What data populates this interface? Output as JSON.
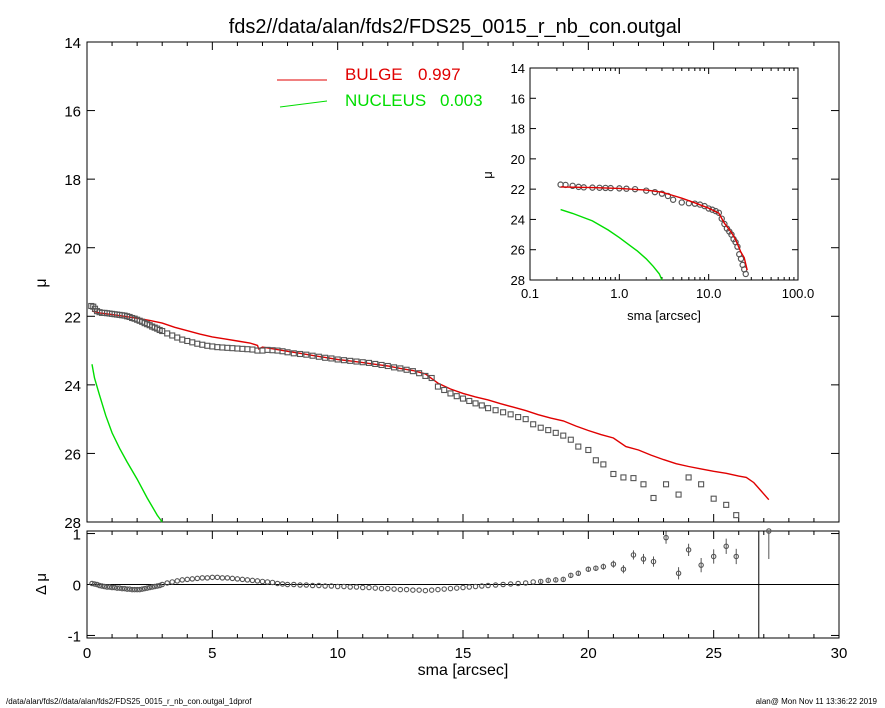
{
  "title": "fds2//data/alan/fds2/FDS25_0015_r_nb_con.outgal",
  "footer_left": "/data/alan/fds2//data/alan/fds2/FDS25_0015_r_nb_con.outgal_1dprof",
  "footer_right": "alan@  Mon Nov 11 13:36:22 2019",
  "colors": {
    "bulge": "#e00000",
    "nucleus": "#00dd00",
    "data": "#555555",
    "axes": "#000000"
  },
  "chart_data": [
    {
      "id": "main_profile",
      "type": "scatter",
      "ylabel": "μ",
      "xlim": [
        0,
        30
      ],
      "ylim": [
        28,
        14
      ],
      "y_inverted": true,
      "yticks": [
        "14",
        "16",
        "18",
        "20",
        "22",
        "24",
        "26",
        "28"
      ],
      "legend": [
        {
          "name": "BULGE",
          "value": "0.997",
          "color": "#e00000"
        },
        {
          "name": "NUCLEUS",
          "value": "0.003",
          "color": "#00dd00"
        }
      ],
      "legend_position": "top-center",
      "series": [
        {
          "name": "data",
          "marker": "square",
          "x": [
            0.17,
            0.25,
            0.32,
            0.4,
            0.5,
            0.6,
            0.7,
            0.8,
            0.9,
            1.0,
            1.1,
            1.2,
            1.3,
            1.4,
            1.5,
            1.6,
            1.7,
            1.8,
            1.9,
            2.0,
            2.1,
            2.2,
            2.3,
            2.4,
            2.5,
            2.6,
            2.7,
            2.8,
            2.9,
            3.0,
            3.2,
            3.4,
            3.6,
            3.8,
            4.0,
            4.2,
            4.4,
            4.6,
            4.8,
            5.0,
            5.2,
            5.4,
            5.6,
            5.8,
            6.0,
            6.2,
            6.4,
            6.6,
            6.8,
            7.0,
            7.2,
            7.4,
            7.6,
            7.8,
            8.0,
            8.25,
            8.5,
            8.75,
            9.0,
            9.25,
            9.5,
            9.75,
            10.0,
            10.25,
            10.5,
            10.75,
            11.0,
            11.25,
            11.5,
            11.75,
            12.0,
            12.25,
            12.5,
            12.75,
            13.0,
            13.25,
            13.5,
            13.75,
            14.0,
            14.25,
            14.5,
            14.75,
            15.0,
            15.25,
            15.5,
            15.75,
            16.0,
            16.3,
            16.6,
            16.9,
            17.2,
            17.5,
            17.8,
            18.1,
            18.4,
            18.7,
            19.0,
            19.3,
            19.6,
            20.0,
            20.3,
            20.6,
            21.0,
            21.4,
            21.8,
            22.2,
            22.6,
            23.1,
            23.6,
            24.0,
            24.5,
            25.0,
            25.5,
            25.9
          ],
          "y": [
            21.7,
            21.72,
            21.78,
            21.85,
            21.88,
            21.9,
            21.9,
            21.91,
            21.92,
            21.93,
            21.94,
            21.95,
            21.96,
            21.97,
            21.98,
            22.0,
            22.02,
            22.05,
            22.07,
            22.1,
            22.13,
            22.16,
            22.2,
            22.23,
            22.26,
            22.3,
            22.33,
            22.36,
            22.4,
            22.43,
            22.5,
            22.56,
            22.62,
            22.68,
            22.72,
            22.76,
            22.8,
            22.83,
            22.86,
            22.88,
            22.9,
            22.91,
            22.92,
            22.93,
            22.94,
            22.95,
            22.96,
            22.97,
            23.0,
            23.0,
            22.98,
            22.99,
            23.0,
            23.02,
            23.05,
            23.08,
            23.1,
            23.12,
            23.15,
            23.18,
            23.21,
            23.23,
            23.26,
            23.28,
            23.3,
            23.32,
            23.34,
            23.36,
            23.39,
            23.42,
            23.45,
            23.49,
            23.52,
            23.56,
            23.6,
            23.66,
            23.74,
            23.8,
            24.05,
            24.15,
            24.25,
            24.33,
            24.4,
            24.47,
            24.54,
            24.6,
            24.68,
            24.74,
            24.8,
            24.86,
            24.94,
            25.0,
            25.15,
            25.25,
            25.32,
            25.4,
            25.48,
            25.6,
            25.8,
            25.9,
            26.2,
            26.32,
            26.6,
            26.7,
            26.72,
            26.9,
            27.3,
            26.9,
            27.2,
            26.7,
            26.9,
            27.32,
            27.5,
            27.8
          ],
          "color": "#555555"
        },
        {
          "name": "BULGE",
          "type": "line",
          "x": [
            0.2,
            0.5,
            1.0,
            1.5,
            2.0,
            2.5,
            3.0,
            3.5,
            4.0,
            4.5,
            5.0,
            5.5,
            6.0,
            6.5,
            6.8,
            6.85,
            7.0,
            7.5,
            8.0,
            8.5,
            9.0,
            9.5,
            10.0,
            10.5,
            11.0,
            11.5,
            12.0,
            12.5,
            13.0,
            13.5,
            14.0,
            14.5,
            15.0,
            15.5,
            16.0,
            16.5,
            17.0,
            17.5,
            18.0,
            18.5,
            19.0,
            19.5,
            20.0,
            20.5,
            21.0,
            21.5,
            22.0,
            22.5,
            23.0,
            23.5,
            24.0,
            24.5,
            25.0,
            25.5,
            26.0,
            26.3,
            26.6,
            26.9,
            27.2
          ],
          "y": [
            21.85,
            21.9,
            21.95,
            22.0,
            22.06,
            22.12,
            22.2,
            22.32,
            22.42,
            22.52,
            22.6,
            22.66,
            22.72,
            22.78,
            22.85,
            22.95,
            22.9,
            22.96,
            23.02,
            23.08,
            23.14,
            23.2,
            23.26,
            23.3,
            23.35,
            23.4,
            23.45,
            23.52,
            23.58,
            23.68,
            23.95,
            24.12,
            24.25,
            24.35,
            24.44,
            24.55,
            24.65,
            24.75,
            24.87,
            24.97,
            25.05,
            25.2,
            25.33,
            25.45,
            25.55,
            25.8,
            25.9,
            26.05,
            26.18,
            26.3,
            26.38,
            26.45,
            26.52,
            26.58,
            26.66,
            26.7,
            26.85,
            27.1,
            27.35
          ],
          "color": "#e00000"
        },
        {
          "name": "NUCLEUS",
          "type": "line",
          "x": [
            0.2,
            0.3,
            0.5,
            0.75,
            1.0,
            1.3,
            1.6,
            2.0,
            2.4,
            2.8,
            3.0
          ],
          "y": [
            23.4,
            23.8,
            24.3,
            24.9,
            25.4,
            25.85,
            26.25,
            26.75,
            27.3,
            27.8,
            28.1
          ],
          "color": "#00dd00"
        }
      ]
    },
    {
      "id": "inset_log",
      "type": "scatter",
      "xlabel": "sma [arcsec]",
      "ylabel": "μ",
      "xscale": "log",
      "xlim": [
        0.1,
        100
      ],
      "xticks": [
        "0.1",
        "1.0",
        "10.0",
        "100.0"
      ],
      "ylim": [
        28,
        14
      ],
      "y_inverted": true,
      "yticks": [
        "14",
        "16",
        "18",
        "20",
        "22",
        "24",
        "26",
        "28"
      ],
      "series": [
        {
          "name": "data",
          "marker": "circle",
          "x": [
            0.22,
            0.25,
            0.3,
            0.35,
            0.4,
            0.5,
            0.6,
            0.7,
            0.8,
            1.0,
            1.2,
            1.5,
            2.0,
            2.5,
            3.0,
            3.5,
            4.0,
            5.0,
            6.0,
            7.0,
            8.0,
            9.0,
            10.0,
            11.0,
            12.0,
            13.0,
            14.0,
            15.0,
            16.0,
            17.0,
            18.0,
            19.0,
            20.0,
            21.0,
            22.0,
            23.0,
            24.0,
            25.0,
            26.0
          ],
          "y": [
            21.7,
            21.72,
            21.78,
            21.85,
            21.88,
            21.9,
            21.91,
            21.92,
            21.93,
            21.95,
            21.97,
            22.0,
            22.1,
            22.2,
            22.3,
            22.45,
            22.7,
            22.88,
            22.93,
            22.96,
            23.02,
            23.12,
            23.28,
            23.36,
            23.45,
            23.56,
            23.95,
            24.3,
            24.6,
            24.8,
            25.0,
            25.3,
            25.5,
            25.8,
            26.3,
            26.6,
            27.0,
            27.3,
            27.6
          ],
          "color": "#555555"
        },
        {
          "name": "BULGE",
          "type": "line",
          "x": [
            0.22,
            0.3,
            0.5,
            1.0,
            2.0,
            3.0,
            4.0,
            5.0,
            7.0,
            10.0,
            13.0,
            15.0,
            18.0,
            20.0,
            23.0,
            25.0,
            27.0
          ],
          "y": [
            21.85,
            21.87,
            21.9,
            21.95,
            22.06,
            22.2,
            22.42,
            22.6,
            22.9,
            23.26,
            23.58,
            24.25,
            24.87,
            25.33,
            26.18,
            26.52,
            27.35
          ],
          "color": "#e00000"
        },
        {
          "name": "NUCLEUS",
          "type": "line",
          "x": [
            0.22,
            0.3,
            0.5,
            0.75,
            1.0,
            1.3,
            1.6,
            2.0,
            2.4,
            2.8,
            3.0
          ],
          "y": [
            23.35,
            23.6,
            24.1,
            24.7,
            25.2,
            25.7,
            26.1,
            26.6,
            27.1,
            27.6,
            28.1
          ],
          "color": "#00dd00"
        }
      ]
    },
    {
      "id": "residuals",
      "type": "scatter",
      "xlabel": "sma [arcsec]",
      "ylabel": "Δ μ",
      "xlim": [
        0,
        30
      ],
      "xticks": [
        "0",
        "5",
        "10",
        "15",
        "20",
        "25",
        "30"
      ],
      "ylim": [
        -1.05,
        1.05
      ],
      "yticks": [
        "1",
        "0",
        "-1"
      ],
      "vline_x": 26.8,
      "series": [
        {
          "name": "residual",
          "marker": "circle",
          "x": [
            0.2,
            0.3,
            0.4,
            0.5,
            0.6,
            0.7,
            0.8,
            0.9,
            1.0,
            1.1,
            1.2,
            1.3,
            1.4,
            1.5,
            1.6,
            1.7,
            1.8,
            1.9,
            2.0,
            2.1,
            2.2,
            2.3,
            2.4,
            2.5,
            2.6,
            2.7,
            2.8,
            2.9,
            3.0,
            3.2,
            3.4,
            3.6,
            3.8,
            4.0,
            4.2,
            4.4,
            4.6,
            4.8,
            5.0,
            5.2,
            5.4,
            5.6,
            5.8,
            6.0,
            6.2,
            6.4,
            6.6,
            6.8,
            7.0,
            7.2,
            7.4,
            7.6,
            7.8,
            8.0,
            8.25,
            8.5,
            8.75,
            9.0,
            9.25,
            9.5,
            9.75,
            10.0,
            10.25,
            10.5,
            10.75,
            11.0,
            11.25,
            11.5,
            11.75,
            12.0,
            12.25,
            12.5,
            12.75,
            13.0,
            13.25,
            13.5,
            13.75,
            14.0,
            14.25,
            14.5,
            14.75,
            15.0,
            15.25,
            15.5,
            15.75,
            16.0,
            16.3,
            16.6,
            16.9,
            17.2,
            17.5,
            17.8,
            18.1,
            18.4,
            18.7,
            19.0,
            19.3,
            19.6,
            20.0,
            20.3,
            20.6,
            21.0,
            21.4,
            21.8,
            22.2,
            22.6,
            23.1,
            23.6,
            24.0,
            24.5,
            25.0,
            25.5,
            25.9,
            27.2
          ],
          "y": [
            0.02,
            0.01,
            0.0,
            -0.02,
            -0.03,
            -0.04,
            -0.05,
            -0.05,
            -0.06,
            -0.06,
            -0.07,
            -0.07,
            -0.08,
            -0.08,
            -0.09,
            -0.09,
            -0.1,
            -0.1,
            -0.1,
            -0.1,
            -0.09,
            -0.08,
            -0.07,
            -0.06,
            -0.05,
            -0.04,
            -0.03,
            -0.02,
            0.0,
            0.03,
            0.05,
            0.07,
            0.09,
            0.1,
            0.11,
            0.12,
            0.13,
            0.13,
            0.14,
            0.14,
            0.13,
            0.13,
            0.12,
            0.11,
            0.1,
            0.09,
            0.08,
            0.07,
            0.06,
            0.05,
            0.04,
            0.02,
            0.01,
            0.0,
            0.0,
            -0.01,
            -0.01,
            -0.02,
            -0.02,
            -0.03,
            -0.03,
            -0.04,
            -0.04,
            -0.05,
            -0.05,
            -0.06,
            -0.06,
            -0.07,
            -0.08,
            -0.08,
            -0.09,
            -0.1,
            -0.1,
            -0.11,
            -0.11,
            -0.12,
            -0.11,
            -0.1,
            -0.09,
            -0.08,
            -0.07,
            -0.06,
            -0.05,
            -0.04,
            -0.03,
            -0.02,
            -0.01,
            0.0,
            0.01,
            0.02,
            0.03,
            0.05,
            0.06,
            0.08,
            0.09,
            0.1,
            0.18,
            0.22,
            0.3,
            0.32,
            0.35,
            0.4,
            0.3,
            0.58,
            0.5,
            0.45,
            0.92,
            0.22,
            0.68,
            0.38,
            0.55,
            0.75,
            0.55,
            1.05
          ],
          "err": [
            0.01,
            0.01,
            0.01,
            0.01,
            0.01,
            0.01,
            0.01,
            0.01,
            0.01,
            0.01,
            0.01,
            0.01,
            0.01,
            0.01,
            0.01,
            0.01,
            0.01,
            0.01,
            0.01,
            0.01,
            0.01,
            0.01,
            0.01,
            0.01,
            0.01,
            0.01,
            0.01,
            0.01,
            0.01,
            0.01,
            0.01,
            0.01,
            0.01,
            0.01,
            0.01,
            0.01,
            0.01,
            0.01,
            0.01,
            0.01,
            0.01,
            0.01,
            0.01,
            0.01,
            0.01,
            0.01,
            0.01,
            0.01,
            0.01,
            0.01,
            0.01,
            0.01,
            0.01,
            0.01,
            0.01,
            0.01,
            0.01,
            0.01,
            0.01,
            0.01,
            0.01,
            0.01,
            0.01,
            0.01,
            0.01,
            0.01,
            0.01,
            0.01,
            0.01,
            0.01,
            0.01,
            0.01,
            0.01,
            0.01,
            0.01,
            0.01,
            0.01,
            0.01,
            0.01,
            0.01,
            0.01,
            0.01,
            0.01,
            0.01,
            0.01,
            0.01,
            0.02,
            0.02,
            0.02,
            0.02,
            0.02,
            0.02,
            0.03,
            0.03,
            0.03,
            0.03,
            0.04,
            0.04,
            0.05,
            0.05,
            0.06,
            0.07,
            0.08,
            0.09,
            0.1,
            0.1,
            0.12,
            0.12,
            0.12,
            0.14,
            0.14,
            0.15,
            0.15,
            0.55
          ],
          "color": "#555555"
        }
      ]
    }
  ]
}
